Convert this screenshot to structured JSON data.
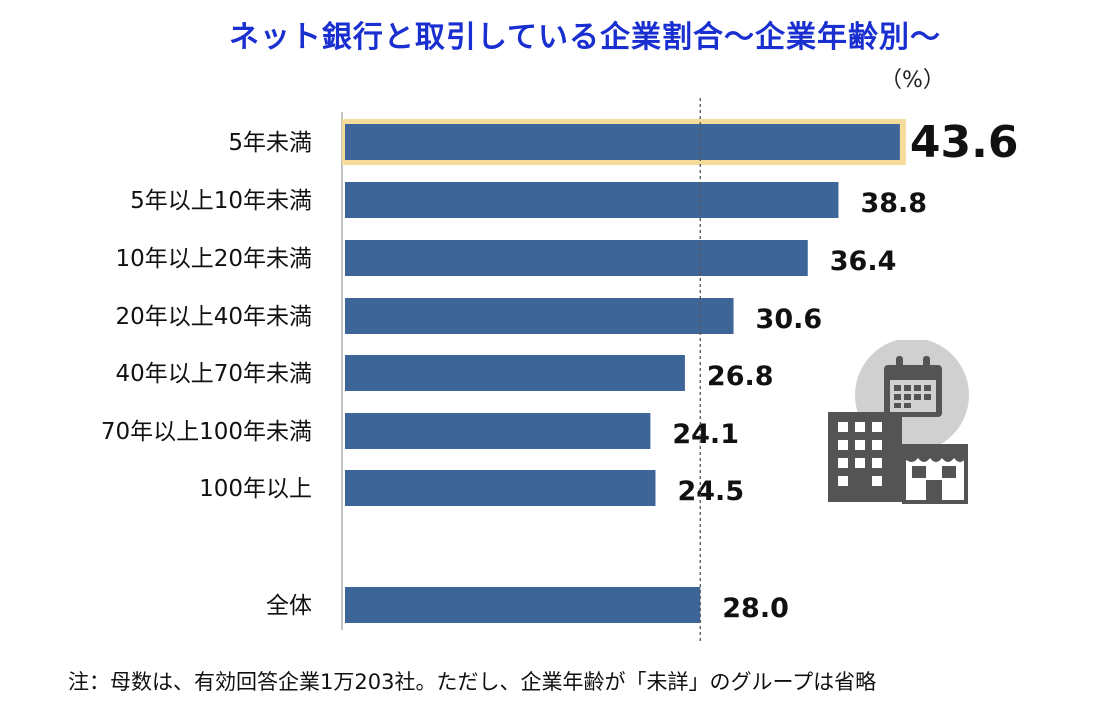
{
  "chart_data": {
    "type": "bar",
    "orientation": "horizontal",
    "title": "ネット銀行と取引している企業割合～企業年齢別～",
    "unit": "（%）",
    "categories": [
      "5年未満",
      "5年以上10年未満",
      "10年以上20年未満",
      "20年以上40年未満",
      "40年以上70年未満",
      "70年以上100年未満",
      "100年以上",
      "全体"
    ],
    "values": [
      43.6,
      38.8,
      36.4,
      30.6,
      26.8,
      24.1,
      24.5,
      28.0
    ],
    "value_labels": [
      "43.6",
      "38.8",
      "36.4",
      "30.6",
      "26.8",
      "24.1",
      "24.5",
      "28.0"
    ],
    "highlight_index": 0,
    "reference_value": 28.0,
    "xlim": [
      0,
      44
    ],
    "bar_color": "#3e6598",
    "highlight_color": "#f5dc9a"
  },
  "note": "注：母数は、有効回答企業1万203社。ただし、企業年齢が「未詳」のグループは省略",
  "icon": "calendar-building-store-icon"
}
